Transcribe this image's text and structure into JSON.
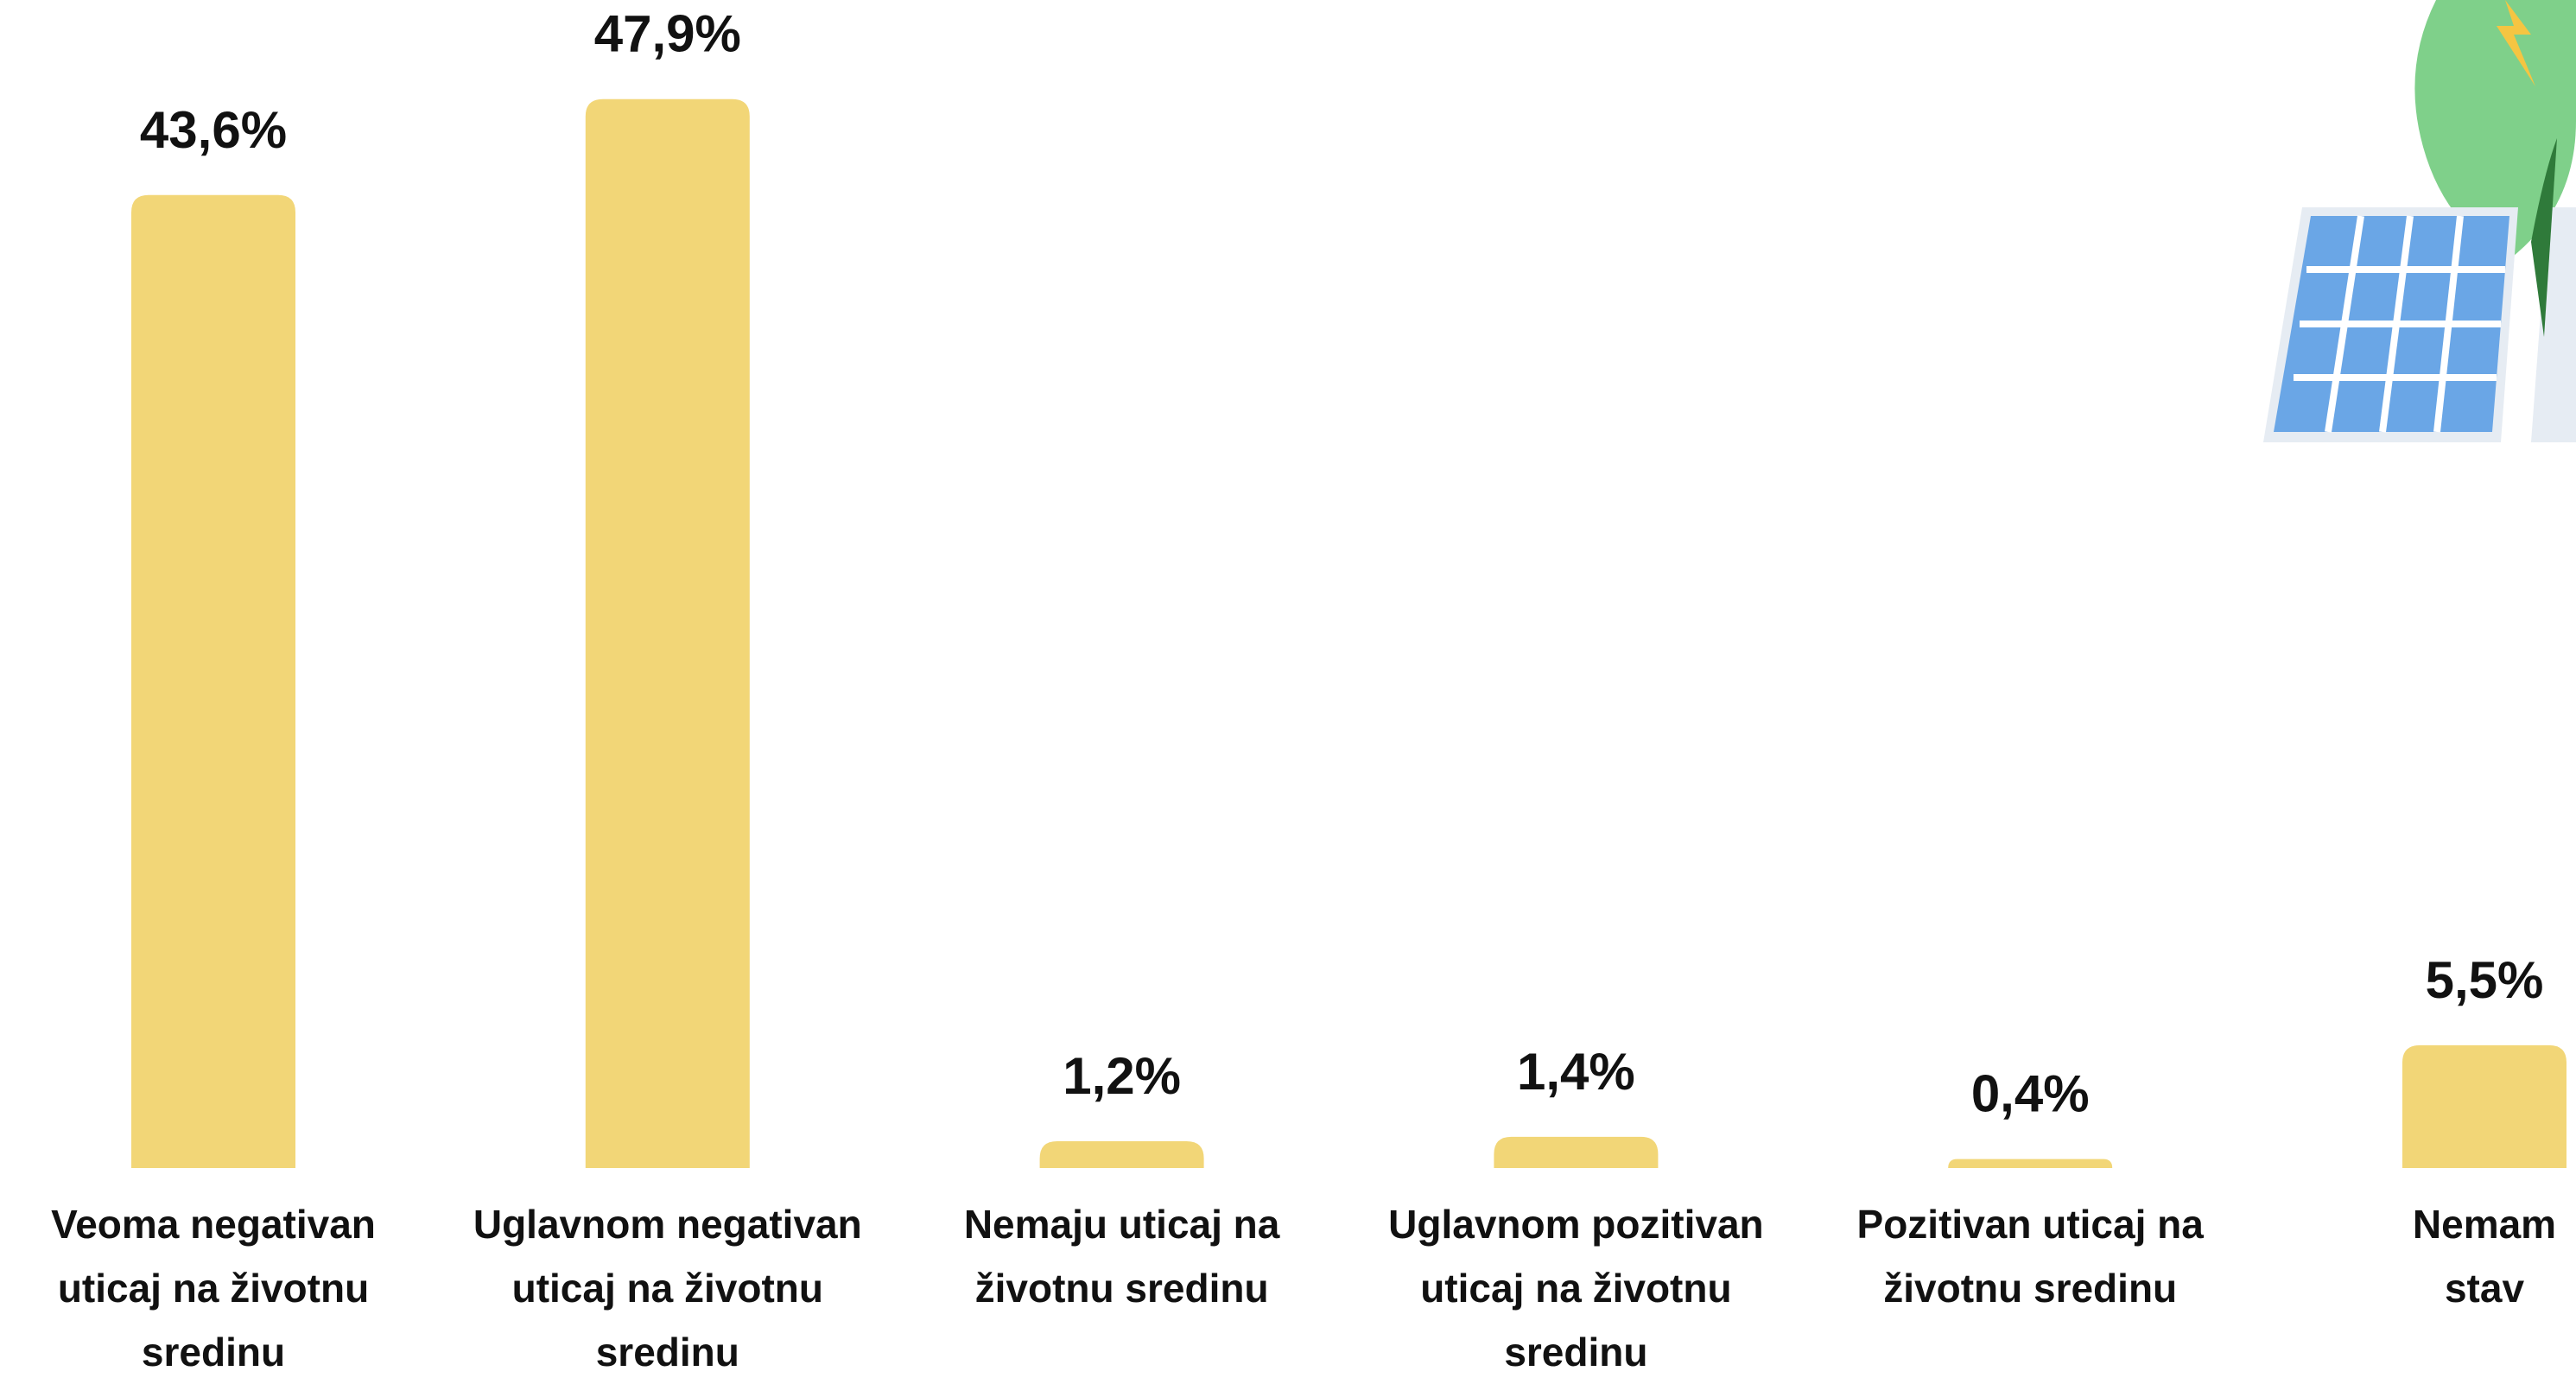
{
  "chart_data": {
    "type": "bar",
    "categories": [
      "Veoma negativan uticaj na životnu sredinu",
      "Uglavnom negativan uticaj na životnu sredinu",
      "Nemaju uticaj na životnu sredinu",
      "Uglavnom pozitivan uticaj na životnu sredinu",
      "Pozitivan uticaj na životnu sredinu",
      "Nemam stav"
    ],
    "values": [
      43.6,
      47.9,
      1.2,
      1.4,
      0.4,
      5.5
    ],
    "value_labels": [
      "43,6%",
      "47,9%",
      "1,2%",
      "1,4%",
      "0,4%",
      "5,5%"
    ],
    "color": "#f2d677"
  }
}
